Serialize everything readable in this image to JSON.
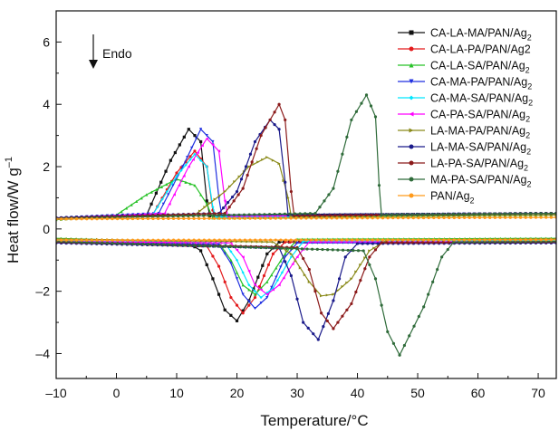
{
  "chart_data": {
    "type": "line",
    "xlabel": "Temperature/°C",
    "ylabel": "Heat flow/W g",
    "ylabel_sup": "–1",
    "xlim": [
      -10,
      73
    ],
    "ylim": [
      -4.8,
      7
    ],
    "xticks": [
      -10,
      0,
      10,
      20,
      30,
      40,
      50,
      60,
      70
    ],
    "yticks": [
      -4,
      -2,
      0,
      2,
      4,
      6
    ],
    "annotation": "Endo",
    "legend_position": "top-right",
    "series": [
      {
        "name": "CA-LA-MA/PAN/Ag",
        "sub": "2",
        "color": "#111111",
        "marker": "square",
        "heating": [
          [
            -10,
            0.34
          ],
          [
            5,
            0.45
          ],
          [
            9,
            2.2
          ],
          [
            12,
            3.2
          ],
          [
            14,
            2.8
          ],
          [
            15,
            0.9
          ],
          [
            15.5,
            0.42
          ],
          [
            73,
            0.5
          ]
        ],
        "cooling": [
          [
            73,
            -0.4
          ],
          [
            27,
            -0.42
          ],
          [
            25,
            -0.8
          ],
          [
            22,
            -2.3
          ],
          [
            20,
            -2.95
          ],
          [
            18,
            -2.6
          ],
          [
            16,
            -1.6
          ],
          [
            14,
            -0.7
          ],
          [
            12,
            -0.45
          ],
          [
            -10,
            -0.4
          ]
        ]
      },
      {
        "name": "CA-LA-PA/PAN/Ag2",
        "sub": "",
        "color": "#e31a1c",
        "marker": "circle",
        "heating": [
          [
            -10,
            0.34
          ],
          [
            6,
            0.45
          ],
          [
            10,
            1.8
          ],
          [
            13,
            2.5
          ],
          [
            15,
            2.0
          ],
          [
            16,
            0.6
          ],
          [
            16.5,
            0.4
          ],
          [
            73,
            0.5
          ]
        ],
        "cooling": [
          [
            73,
            -0.4
          ],
          [
            28,
            -0.42
          ],
          [
            26,
            -0.8
          ],
          [
            23,
            -2.2
          ],
          [
            21,
            -2.7
          ],
          [
            19,
            -2.2
          ],
          [
            17,
            -1.2
          ],
          [
            15,
            -0.55
          ],
          [
            -10,
            -0.4
          ]
        ]
      },
      {
        "name": "CA-LA-SA/PAN/Ag",
        "sub": "2",
        "color": "#27c227",
        "marker": "triangle",
        "heating": [
          [
            -10,
            0.3
          ],
          [
            0,
            0.45
          ],
          [
            5,
            1.1
          ],
          [
            10,
            1.6
          ],
          [
            13,
            1.4
          ],
          [
            15,
            0.8
          ],
          [
            16,
            0.35
          ],
          [
            73,
            0.45
          ]
        ],
        "cooling": [
          [
            73,
            -0.3
          ],
          [
            30,
            -0.33
          ],
          [
            28,
            -0.8
          ],
          [
            25,
            -1.7
          ],
          [
            23,
            -2.1
          ],
          [
            21,
            -1.8
          ],
          [
            19,
            -1.0
          ],
          [
            17,
            -0.45
          ],
          [
            -10,
            -0.3
          ]
        ]
      },
      {
        "name": "CA-MA-PA/PAN/Ag",
        "sub": "2",
        "color": "#1f2fe0",
        "marker": "triangle-down",
        "heating": [
          [
            -10,
            0.35
          ],
          [
            7,
            0.5
          ],
          [
            11,
            2.0
          ],
          [
            14,
            3.2
          ],
          [
            16,
            2.8
          ],
          [
            17,
            1.0
          ],
          [
            17.5,
            0.42
          ],
          [
            73,
            0.5
          ]
        ],
        "cooling": [
          [
            73,
            -0.42
          ],
          [
            30,
            -0.45
          ],
          [
            28,
            -0.9
          ],
          [
            25,
            -2.2
          ],
          [
            23,
            -2.55
          ],
          [
            21,
            -2.1
          ],
          [
            19,
            -1.1
          ],
          [
            17,
            -0.5
          ],
          [
            -10,
            -0.42
          ]
        ]
      },
      {
        "name": "CA-MA-SA/PAN/Ag",
        "sub": "2",
        "color": "#00e6ff",
        "marker": "diamond",
        "heating": [
          [
            -10,
            0.32
          ],
          [
            6,
            0.45
          ],
          [
            10,
            1.7
          ],
          [
            13,
            2.4
          ],
          [
            15,
            2.0
          ],
          [
            16,
            0.7
          ],
          [
            16.5,
            0.38
          ],
          [
            73,
            0.5
          ]
        ],
        "cooling": [
          [
            73,
            -0.38
          ],
          [
            31,
            -0.4
          ],
          [
            29,
            -0.9
          ],
          [
            26,
            -1.9
          ],
          [
            24,
            -2.2
          ],
          [
            22,
            -1.8
          ],
          [
            20,
            -1.0
          ],
          [
            18,
            -0.45
          ],
          [
            -10,
            -0.38
          ]
        ]
      },
      {
        "name": "CA-PA-SA/PAN/Ag",
        "sub": "2",
        "color": "#ff00ff",
        "marker": "triangle-left",
        "heating": [
          [
            -10,
            0.33
          ],
          [
            8,
            0.5
          ],
          [
            12,
            2.0
          ],
          [
            15,
            2.9
          ],
          [
            17,
            2.5
          ],
          [
            18,
            0.9
          ],
          [
            18.5,
            0.4
          ],
          [
            73,
            0.5
          ]
        ],
        "cooling": [
          [
            73,
            -0.4
          ],
          [
            32,
            -0.42
          ],
          [
            30,
            -0.9
          ],
          [
            27,
            -1.8
          ],
          [
            25,
            -2.1
          ],
          [
            23,
            -1.8
          ],
          [
            21,
            -0.9
          ],
          [
            19,
            -0.45
          ],
          [
            -10,
            -0.4
          ]
        ]
      },
      {
        "name": "LA-MA-PA/PAN/Ag",
        "sub": "2",
        "color": "#8a8a1a",
        "marker": "triangle-right",
        "heating": [
          [
            -10,
            0.3
          ],
          [
            13,
            0.45
          ],
          [
            18,
            1.2
          ],
          [
            22,
            2.0
          ],
          [
            25,
            2.3
          ],
          [
            27,
            2.1
          ],
          [
            28.5,
            1.0
          ],
          [
            29,
            0.4
          ],
          [
            73,
            0.45
          ]
        ],
        "cooling": [
          [
            73,
            -0.32
          ],
          [
            45,
            -0.35
          ],
          [
            42,
            -0.7
          ],
          [
            39,
            -1.6
          ],
          [
            36,
            -2.1
          ],
          [
            34,
            -2.15
          ],
          [
            32,
            -1.7
          ],
          [
            29,
            -0.8
          ],
          [
            26,
            -0.42
          ],
          [
            -10,
            -0.32
          ]
        ]
      },
      {
        "name": "LA-MA-SA/PAN/Ag",
        "sub": "2",
        "color": "#1a1a8a",
        "marker": "hexagon",
        "heating": [
          [
            -10,
            0.36
          ],
          [
            17,
            0.5
          ],
          [
            20,
            1.2
          ],
          [
            23,
            2.8
          ],
          [
            25.5,
            3.5
          ],
          [
            27,
            3.2
          ],
          [
            28,
            1.5
          ],
          [
            28.5,
            0.45
          ],
          [
            73,
            0.5
          ]
        ],
        "cooling": [
          [
            73,
            -0.45
          ],
          [
            40,
            -0.47
          ],
          [
            38,
            -0.9
          ],
          [
            36,
            -2.3
          ],
          [
            33.5,
            -3.55
          ],
          [
            31,
            -3.0
          ],
          [
            29,
            -1.5
          ],
          [
            27,
            -0.6
          ],
          [
            -10,
            -0.45
          ]
        ]
      },
      {
        "name": "LA-PA-SA/PAN/Ag",
        "sub": "2",
        "color": "#8b1a1a",
        "marker": "star",
        "heating": [
          [
            -10,
            0.34
          ],
          [
            18,
            0.5
          ],
          [
            21,
            1.3
          ],
          [
            24,
            3.0
          ],
          [
            27,
            4.0
          ],
          [
            28,
            3.5
          ],
          [
            29,
            1.2
          ],
          [
            29.5,
            0.42
          ],
          [
            73,
            0.5
          ]
        ],
        "cooling": [
          [
            73,
            -0.42
          ],
          [
            44,
            -0.44
          ],
          [
            42,
            -0.9
          ],
          [
            39,
            -2.4
          ],
          [
            36,
            -3.2
          ],
          [
            34,
            -2.7
          ],
          [
            32,
            -1.3
          ],
          [
            30,
            -0.6
          ],
          [
            -10,
            -0.42
          ]
        ]
      },
      {
        "name": "MA-PA-SA/PAN/Ag",
        "sub": "2",
        "color": "#2f6b3a",
        "marker": "pentagon",
        "heating": [
          [
            -10,
            0.33
          ],
          [
            33,
            0.5
          ],
          [
            36,
            1.3
          ],
          [
            39,
            3.5
          ],
          [
            41.5,
            4.3
          ],
          [
            43,
            3.6
          ],
          [
            43.6,
            1.4
          ],
          [
            44,
            0.45
          ],
          [
            73,
            0.5
          ]
        ],
        "cooling": [
          [
            73,
            -0.4
          ],
          [
            56,
            -0.42
          ],
          [
            54,
            -0.9
          ],
          [
            51,
            -2.5
          ],
          [
            47,
            -4.05
          ],
          [
            45,
            -3.3
          ],
          [
            43,
            -1.6
          ],
          [
            41,
            -0.7
          ],
          [
            -10,
            -0.4
          ]
        ]
      },
      {
        "name": "PAN/Ag",
        "sub": "2",
        "color": "#ff9a1a",
        "marker": "circle",
        "heating": [
          [
            -10,
            0.32
          ],
          [
            73,
            0.37
          ]
        ],
        "cooling": [
          [
            73,
            -0.35
          ],
          [
            -10,
            -0.36
          ]
        ]
      }
    ]
  }
}
